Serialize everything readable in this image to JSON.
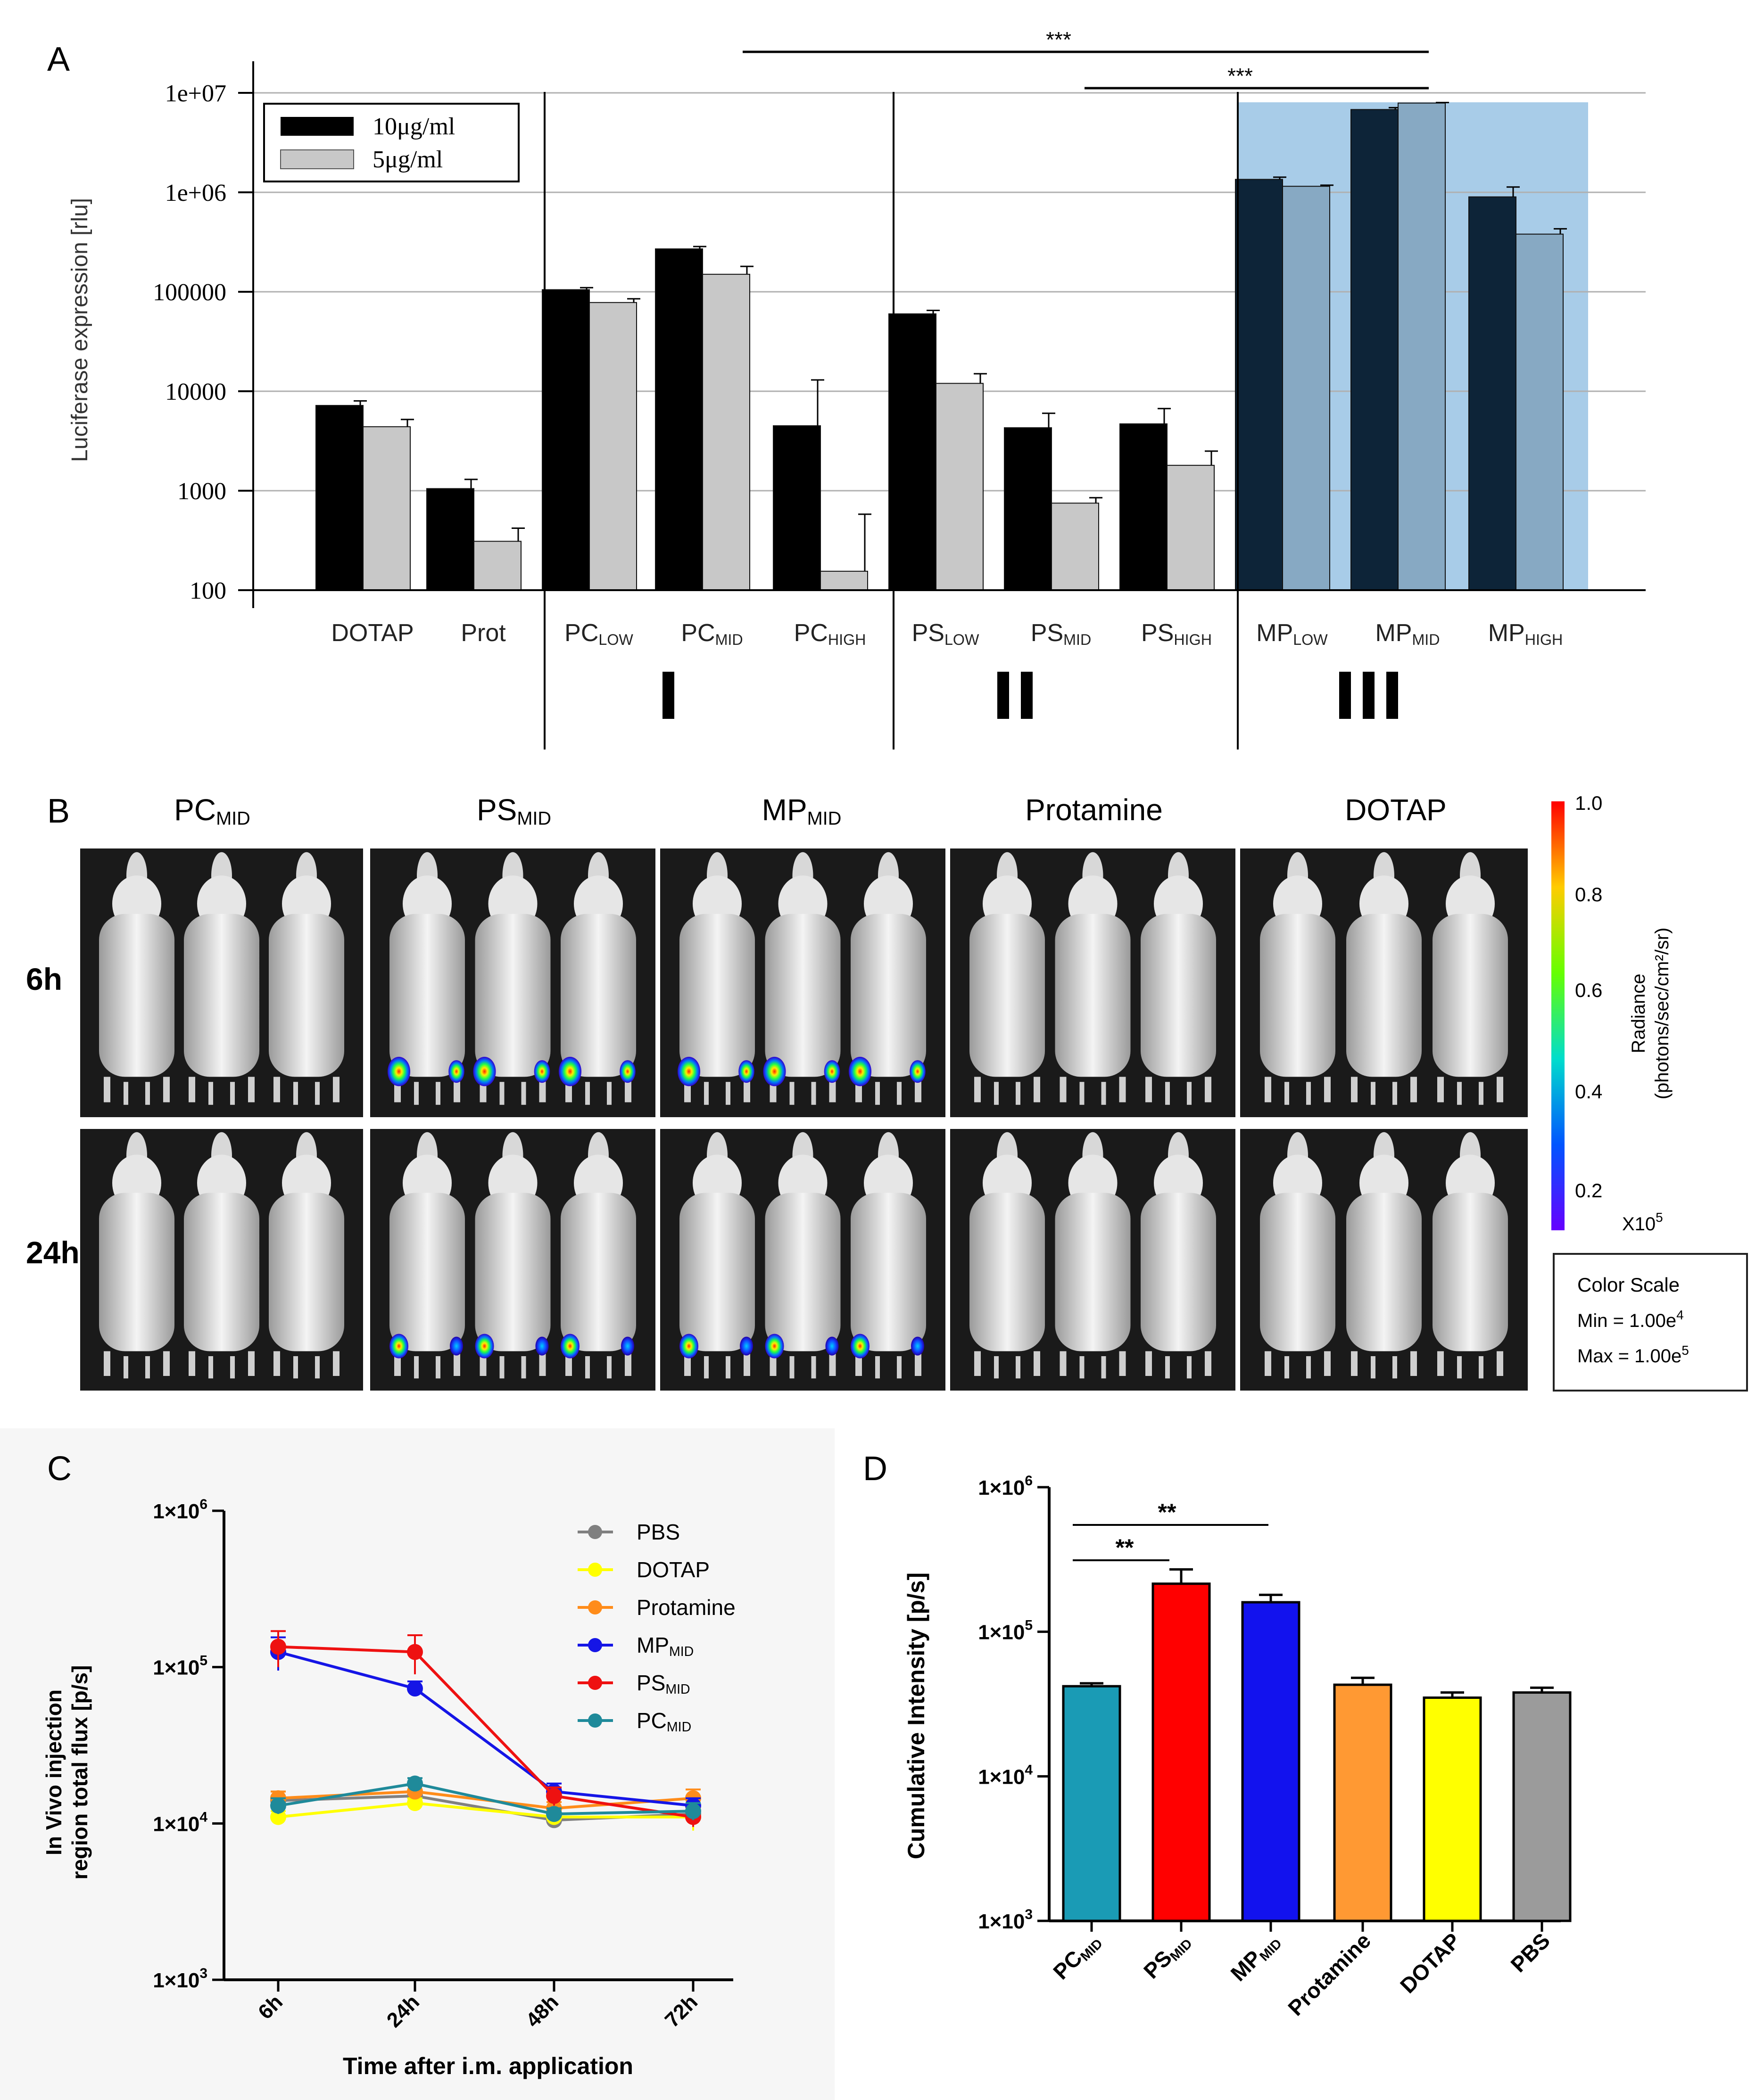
{
  "panel_labels": {
    "a": "A",
    "b": "B",
    "c": "C",
    "d": "D"
  },
  "colors": {
    "black": "#000000",
    "gray": "#c8c8c8",
    "highlight": "#a8cce8",
    "mp10": "#0d2438",
    "mp5": "#87a9c3",
    "pbs": "#808080",
    "dotap": "#ffff00",
    "protamine": "#ff8c1a",
    "mp": "#1515e6",
    "ps": "#ee1111",
    "pc": "#1f8a9a",
    "teal": "#1a9bb5",
    "red": "#ff0000",
    "blue": "#1212ee",
    "orange": "#ff9933",
    "yellow": "#ffff00",
    "grey": "#9b9b9b"
  },
  "chart_data": [
    {
      "panel": "A",
      "type": "bar",
      "scale": "log",
      "ylabel": "Luciferase expression [rlu]",
      "ylim": [
        100,
        10000000
      ],
      "ticks": [
        "100",
        "1000",
        "10000",
        "100000",
        "1e+06",
        "1e+07"
      ],
      "tick_values": [
        100,
        1000,
        10000,
        100000,
        1000000,
        10000000
      ],
      "categories": [
        {
          "main": "DOTAP",
          "sub": ""
        },
        {
          "main": "Prot",
          "sub": ""
        },
        {
          "main": "PC",
          "sub": "LOW"
        },
        {
          "main": "PC",
          "sub": "MID"
        },
        {
          "main": "PC",
          "sub": "HIGH"
        },
        {
          "main": "PS",
          "sub": "LOW"
        },
        {
          "main": "PS",
          "sub": "MID"
        },
        {
          "main": "PS",
          "sub": "HIGH"
        },
        {
          "main": "MP",
          "sub": "LOW"
        },
        {
          "main": "MP",
          "sub": "MID"
        },
        {
          "main": "MP",
          "sub": "HIGH"
        }
      ],
      "series": [
        {
          "name": "10μg/ml",
          "values": [
            7200,
            1050,
            105000,
            270000,
            4500,
            60000,
            4300,
            4700,
            1350000,
            6800000,
            900000
          ],
          "errors": [
            8000,
            1300,
            110000,
            285000,
            13000,
            65000,
            6000,
            6700,
            1420000,
            7100000,
            1130000
          ]
        },
        {
          "name": "5μg/ml",
          "values": [
            4400,
            310,
            78000,
            150000,
            155,
            12000,
            750,
            1800,
            1150000,
            7900000,
            380000
          ],
          "errors": [
            5200,
            420,
            85000,
            180000,
            580,
            15000,
            850,
            2500,
            1180000,
            8000000,
            430000
          ]
        }
      ],
      "groups": [
        "I",
        "II",
        "III"
      ],
      "significance": [
        {
          "label": "***"
        },
        {
          "label": "***"
        }
      ]
    },
    {
      "panel": "C",
      "type": "line",
      "scale": "log",
      "ylabel_line1": "In Vivo injection",
      "ylabel_line2": "region total flux [p/s]",
      "xlabel": "Time after i.m. application",
      "x": [
        "6h",
        "24h",
        "48h",
        "72h"
      ],
      "ylim": [
        1000,
        1000000
      ],
      "ticks": [
        {
          "base": "1×10",
          "exp": "3"
        },
        {
          "base": "1×10",
          "exp": "4"
        },
        {
          "base": "1×10",
          "exp": "5"
        },
        {
          "base": "1×10",
          "exp": "6"
        }
      ],
      "series": [
        {
          "name": "PBS",
          "sub": "",
          "values": [
            14000,
            15000,
            10500,
            11500
          ],
          "err": [
            2000,
            1500,
            1000,
            1500
          ]
        },
        {
          "name": "DOTAP",
          "sub": "",
          "values": [
            11000,
            13500,
            11000,
            11000
          ],
          "err": [
            1000,
            1000,
            1000,
            2000
          ]
        },
        {
          "name": "Protamine",
          "sub": "",
          "values": [
            14500,
            16000,
            12500,
            14500
          ],
          "err": [
            1500,
            1500,
            1200,
            2000
          ]
        },
        {
          "name": "MP",
          "sub": "MID",
          "values": [
            125000,
            73000,
            16000,
            13000
          ],
          "err": [
            30000,
            8000,
            2000,
            1500
          ]
        },
        {
          "name": "PS",
          "sub": "MID",
          "values": [
            135000,
            125000,
            15000,
            11000
          ],
          "err": [
            35000,
            35000,
            2000,
            1500
          ]
        },
        {
          "name": "PC",
          "sub": "MID",
          "values": [
            13000,
            18000,
            11500,
            12000
          ],
          "err": [
            1500,
            1500,
            1000,
            1500
          ]
        }
      ]
    },
    {
      "panel": "D",
      "type": "bar",
      "scale": "log",
      "ylabel": "Cumulative Intensity  [p/s]",
      "ylim": [
        1000,
        1000000
      ],
      "ticks": [
        {
          "base": "1×10",
          "exp": "3"
        },
        {
          "base": "1×10",
          "exp": "4"
        },
        {
          "base": "1×10",
          "exp": "5"
        },
        {
          "base": "1×10",
          "exp": "6"
        }
      ],
      "categories": [
        {
          "main": "PC",
          "sub": "MID"
        },
        {
          "main": "PS",
          "sub": "MID"
        },
        {
          "main": "MP",
          "sub": "MID"
        },
        {
          "main": "Protamine",
          "sub": ""
        },
        {
          "main": "DOTAP",
          "sub": ""
        },
        {
          "main": "PBS",
          "sub": ""
        }
      ],
      "values": [
        42000,
        215000,
        160000,
        43000,
        35000,
        38000
      ],
      "errors": [
        44000,
        270000,
        180000,
        48000,
        38000,
        41000
      ],
      "significance": [
        {
          "label": "**"
        },
        {
          "label": "**"
        }
      ]
    }
  ],
  "panel_b": {
    "columns": [
      {
        "main": "PC",
        "sub": "MID"
      },
      {
        "main": "PS",
        "sub": "MID"
      },
      {
        "main": "MP",
        "sub": "MID"
      },
      {
        "main": "Protamine",
        "sub": ""
      },
      {
        "main": "DOTAP",
        "sub": ""
      }
    ],
    "rows": [
      "6h",
      "24h"
    ],
    "colorbar": {
      "title_line1": "Radiance",
      "title_line2": "(photons/sec/cm²/sr)",
      "ticks": [
        "1.0",
        "0.8",
        "0.6",
        "0.4",
        "0.2"
      ],
      "multiplier_base": "X10",
      "multiplier_exp": "5"
    },
    "color_scale": {
      "title": "Color Scale",
      "min_label": "Min = 1.00e",
      "min_exp": "4",
      "max_label": "Max = 1.00e",
      "max_exp": "5"
    }
  }
}
